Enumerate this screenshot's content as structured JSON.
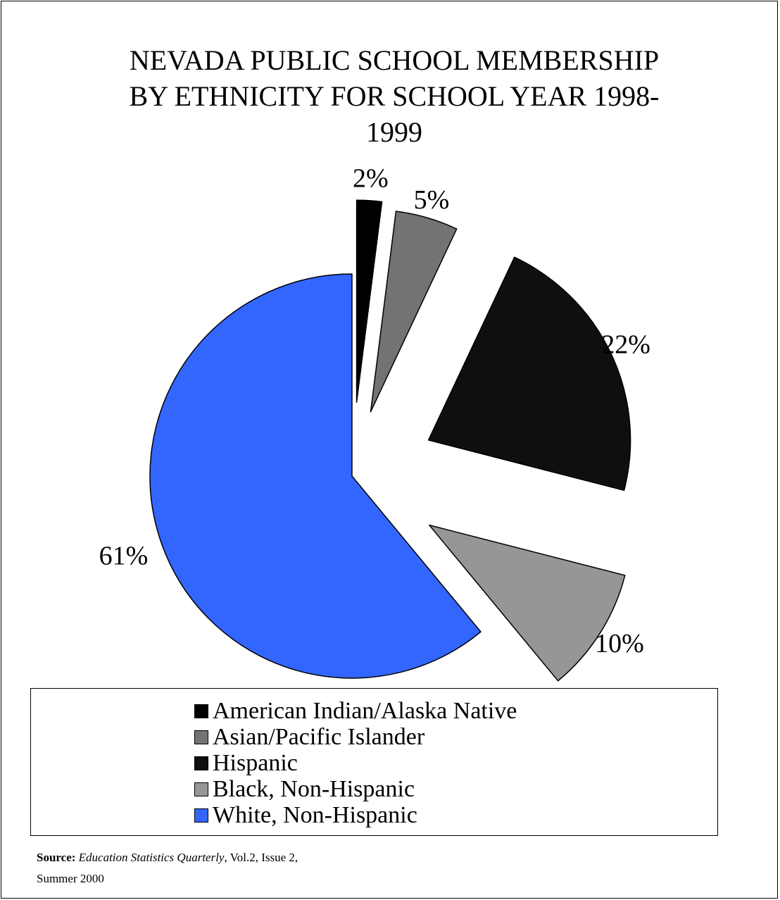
{
  "chart_data": {
    "type": "pie",
    "title": "NEVADA PUBLIC SCHOOL MEMBERSHIP BY ETHNICITY FOR SCHOOL YEAR 1998-1999",
    "title_lines": [
      "NEVADA PUBLIC SCHOOL MEMBERSHIP",
      "BY ETHNICITY FOR SCHOOL YEAR 1998-",
      "1999"
    ],
    "exploded": true,
    "legend_position": "bottom",
    "slices": [
      {
        "label": "American Indian/Alaska Native",
        "value": 2,
        "display": "2%",
        "color": "#000000"
      },
      {
        "label": "Asian/Pacific Islander",
        "value": 5,
        "display": "5%",
        "color": "#737373"
      },
      {
        "label": "Hispanic",
        "value": 22,
        "display": "22%",
        "color": "#0f0f0f"
      },
      {
        "label": "Black, Non-Hispanic",
        "value": 10,
        "display": "10%",
        "color": "#969696"
      },
      {
        "label": "White, Non-Hispanic",
        "value": 61,
        "display": "61%",
        "color": "#3366ff"
      }
    ]
  },
  "source": {
    "label": "Source:",
    "publication": "Education Statistics Quarterly",
    "details": ", Vol.2, Issue 2,",
    "line2": "Summer 2000"
  }
}
